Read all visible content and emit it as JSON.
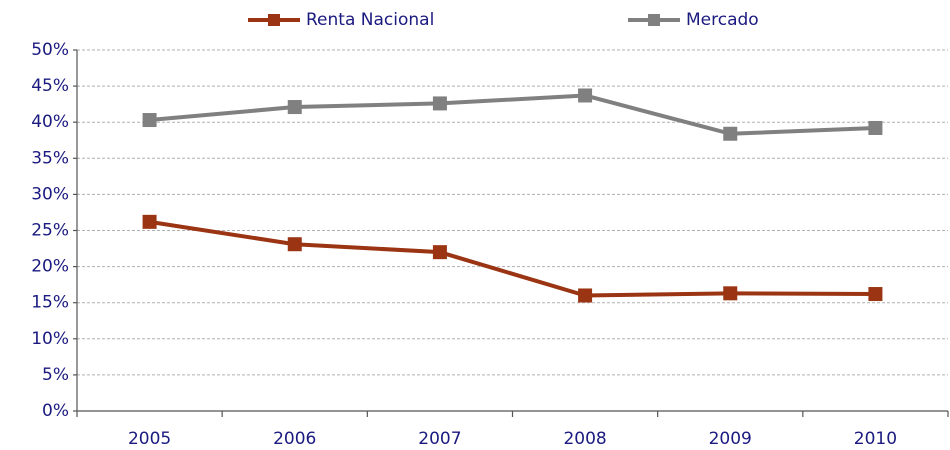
{
  "chart_data": {
    "type": "line",
    "categories": [
      "2005",
      "2006",
      "2007",
      "2008",
      "2009",
      "2010"
    ],
    "series": [
      {
        "name": "Renta Nacional",
        "color": "#9a3412",
        "values": [
          26.2,
          23.1,
          22.0,
          16.0,
          16.3,
          16.2
        ]
      },
      {
        "name": "Mercado",
        "color": "#808080",
        "values": [
          40.3,
          42.1,
          42.6,
          43.7,
          38.4,
          39.2
        ]
      }
    ],
    "ylim": [
      0,
      50
    ],
    "yticks": [
      {
        "value": 0,
        "label": "0%"
      },
      {
        "value": 5,
        "label": "5%"
      },
      {
        "value": 10,
        "label": "10%"
      },
      {
        "value": 15,
        "label": "15%"
      },
      {
        "value": 20,
        "label": "20%"
      },
      {
        "value": 25,
        "label": "25%"
      },
      {
        "value": 30,
        "label": "30%"
      },
      {
        "value": 35,
        "label": "35%"
      },
      {
        "value": 40,
        "label": "40%"
      },
      {
        "value": 45,
        "label": "45%"
      },
      {
        "value": 50,
        "label": "50%"
      }
    ],
    "grid": true
  }
}
